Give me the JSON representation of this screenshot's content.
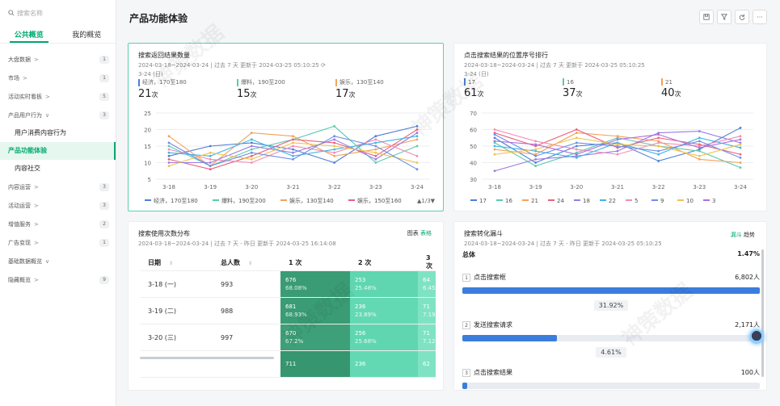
{
  "sidebar": {
    "search_placeholder": "搜索名称",
    "tabs": [
      {
        "label": "公共概览"
      },
      {
        "label": "我的概览"
      }
    ],
    "items": [
      {
        "label": "大盘数据",
        "chev": ">",
        "count": "1"
      },
      {
        "label": "市场",
        "chev": ">",
        "count": "1"
      },
      {
        "label": "活动实时看板",
        "chev": ">",
        "count": "5"
      },
      {
        "label": "产品用户行为",
        "chev": "∨",
        "count": "3"
      }
    ],
    "sub_items": [
      {
        "label": "用户消费内容行为"
      },
      {
        "label": "产品功能体验"
      },
      {
        "label": "内容社交"
      }
    ],
    "items2": [
      {
        "label": "内容运营",
        "chev": ">",
        "count": "3"
      },
      {
        "label": "活动运营",
        "chev": ">",
        "count": "3"
      },
      {
        "label": "增值服务",
        "chev": ">",
        "count": "2"
      },
      {
        "label": "广告变现",
        "chev": ">",
        "count": "1"
      },
      {
        "label": "基础数据概览",
        "chev": "∨",
        "count": ""
      },
      {
        "label": "隐藏概览",
        "chev": ">",
        "count": "9"
      }
    ]
  },
  "header": {
    "title": "产品功能体验"
  },
  "card1": {
    "title": "搜索返回结果数量",
    "subtitle": "2024-03-18~2024-03-24 | 过去 7 天 更新于 2024-03-25 05:10:25",
    "date": "3-24 (日)",
    "kpis": [
      {
        "name": "经济，170至180",
        "value": "21",
        "unit": "次",
        "color": "#4e7fd6"
      },
      {
        "name": "爆料，190至200",
        "value": "15",
        "unit": "次",
        "color": "#5cc9b0"
      },
      {
        "name": "娱乐，130至140",
        "value": "17",
        "unit": "次",
        "color": "#f2a25b"
      }
    ],
    "legend_page": "1/3"
  },
  "card2": {
    "title": "点击搜索结果的位置序号排行",
    "subtitle": "2024-03-18~2024-03-24 | 过去 7 天 更新于 2024-03-25 05:10:25",
    "date": "3-24 (日)",
    "kpis": [
      {
        "name": "17",
        "value": "61",
        "unit": "次",
        "color": "#4e7fd6"
      },
      {
        "name": "16",
        "value": "37",
        "unit": "次",
        "color": "#5cc9b0"
      },
      {
        "name": "21",
        "value": "40",
        "unit": "次",
        "color": "#f2a25b"
      }
    ]
  },
  "card3": {
    "title": "搜索使用次数分布",
    "subtitle": "2024-03-18~2024-03-24 | 过去 7 天 - 昨日 更新于 2024-03-25 16:14:08",
    "toggle": {
      "chart": "图表",
      "table": "表格"
    },
    "headers": [
      "日期",
      "总人数",
      "1 次",
      "2 次",
      "3 次"
    ],
    "rows": [
      {
        "date": "3-18 (一)",
        "total": "993",
        "c1": "676",
        "p1": "68.08%",
        "c2": "253",
        "p2": "25.48%",
        "c3": "64",
        "p3": "6.45"
      },
      {
        "date": "3-19 (二)",
        "total": "988",
        "c1": "681",
        "p1": "68.93%",
        "c2": "236",
        "p2": "23.89%",
        "c3": "71",
        "p3": "7.19"
      },
      {
        "date": "3-20 (三)",
        "total": "997",
        "c1": "670",
        "p1": "67.2%",
        "c2": "256",
        "p2": "25.68%",
        "c3": "71",
        "p3": "7.12"
      },
      {
        "date": "",
        "total": "",
        "c1": "711",
        "p1": "",
        "c2": "236",
        "p2": "",
        "c3": "62",
        "p3": ""
      }
    ]
  },
  "card4": {
    "title": "搜索转化漏斗",
    "subtitle": "2024-03-18~2024-03-24 | 过去 7 天 - 昨日 更新于 2024-03-25 05:10:25",
    "toggle": {
      "funnel": "漏斗",
      "trend": "趋势"
    },
    "overall_label": "总体",
    "overall_value": "1.47%",
    "steps": [
      {
        "num": "1",
        "name": "点击搜索框",
        "value": "6,802人",
        "ratio": 1.0
      },
      {
        "num": "2",
        "name": "发送搜索请求",
        "value": "2,171人",
        "ratio": 0.319
      },
      {
        "num": "3",
        "name": "点击搜索结果",
        "value": "100人",
        "ratio": 0.015
      }
    ],
    "rates": [
      "31.92%",
      "4.61%"
    ]
  },
  "chart_data": [
    {
      "type": "line",
      "title": "搜索返回结果数量",
      "x": [
        "3-18",
        "3-19",
        "3-20",
        "3-21",
        "3-22",
        "3-23",
        "3-24"
      ],
      "ylim": [
        5,
        25
      ],
      "yticks": [
        5,
        10,
        15,
        20,
        25
      ],
      "legend": "bottom",
      "legend_entries": [
        "经济，170至180",
        "爆料，190至200",
        "娱乐，130至140",
        "娱乐，150至160"
      ],
      "series": [
        {
          "name": "经济，170至180",
          "color": "#4e7fd6",
          "values": [
            12,
            15,
            16,
            14,
            10,
            18,
            21
          ]
        },
        {
          "name": "爆料，190至200",
          "color": "#5cc9b0",
          "values": [
            15,
            9,
            14,
            17,
            21,
            10,
            15
          ]
        },
        {
          "name": "娱乐，130至140",
          "color": "#f2a25b",
          "values": [
            18,
            9,
            19,
            18,
            12,
            14,
            17
          ]
        },
        {
          "name": "娱乐，150至160",
          "color": "#e8607a",
          "values": [
            11,
            8,
            12,
            17,
            16,
            12,
            20
          ]
        },
        {
          "name": "",
          "color": "#9a7be0",
          "values": [
            10,
            10,
            15,
            13,
            17,
            11,
            19
          ]
        },
        {
          "name": "",
          "color": "#f58ab0",
          "values": [
            14,
            11,
            10,
            15,
            13,
            17,
            12
          ]
        },
        {
          "name": "",
          "color": "#3fb5e5",
          "values": [
            13,
            12,
            17,
            12,
            14,
            16,
            18
          ]
        },
        {
          "name": "",
          "color": "#f0c24a",
          "values": [
            9,
            13,
            11,
            16,
            15,
            13,
            10
          ]
        },
        {
          "name": "",
          "color": "#6d8fe8",
          "values": [
            16,
            9,
            13,
            11,
            18,
            15,
            8
          ]
        }
      ]
    },
    {
      "type": "line",
      "title": "点击搜索结果的位置序号排行",
      "x": [
        "3-18",
        "3-19",
        "3-20",
        "3-21",
        "3-22",
        "3-23",
        "3-24"
      ],
      "ylim": [
        30,
        70
      ],
      "yticks": [
        30,
        40,
        50,
        60,
        70
      ],
      "legend": "bottom",
      "legend_entries": [
        "17",
        "16",
        "21",
        "24",
        "18",
        "22",
        "5",
        "9",
        "10",
        "3"
      ],
      "series": [
        {
          "name": "17",
          "color": "#4e7fd6",
          "values": [
            55,
            40,
            50,
            52,
            41,
            48,
            61
          ]
        },
        {
          "name": "16",
          "color": "#5cc9b0",
          "values": [
            52,
            38,
            46,
            55,
            50,
            47,
            37
          ]
        },
        {
          "name": "21",
          "color": "#f2a25b",
          "values": [
            48,
            45,
            58,
            56,
            53,
            42,
            40
          ]
        },
        {
          "name": "24",
          "color": "#e8607a",
          "values": [
            58,
            50,
            60,
            49,
            55,
            51,
            45
          ]
        },
        {
          "name": "18",
          "color": "#9a7be0",
          "values": [
            35,
            42,
            44,
            47,
            58,
            59,
            52
          ]
        },
        {
          "name": "22",
          "color": "#3fb5e5",
          "values": [
            50,
            47,
            43,
            52,
            45,
            55,
            49
          ]
        },
        {
          "name": "5",
          "color": "#f58ab0",
          "values": [
            60,
            53,
            48,
            45,
            52,
            50,
            56
          ]
        },
        {
          "name": "9",
          "color": "#6d8fe8",
          "values": [
            57,
            44,
            52,
            50,
            47,
            53,
            43
          ]
        },
        {
          "name": "10",
          "color": "#f0c24a",
          "values": [
            45,
            48,
            55,
            51,
            50,
            44,
            51
          ]
        },
        {
          "name": "3",
          "color": "#b06fe0",
          "values": [
            53,
            51,
            45,
            54,
            57,
            49,
            54
          ]
        }
      ]
    }
  ]
}
